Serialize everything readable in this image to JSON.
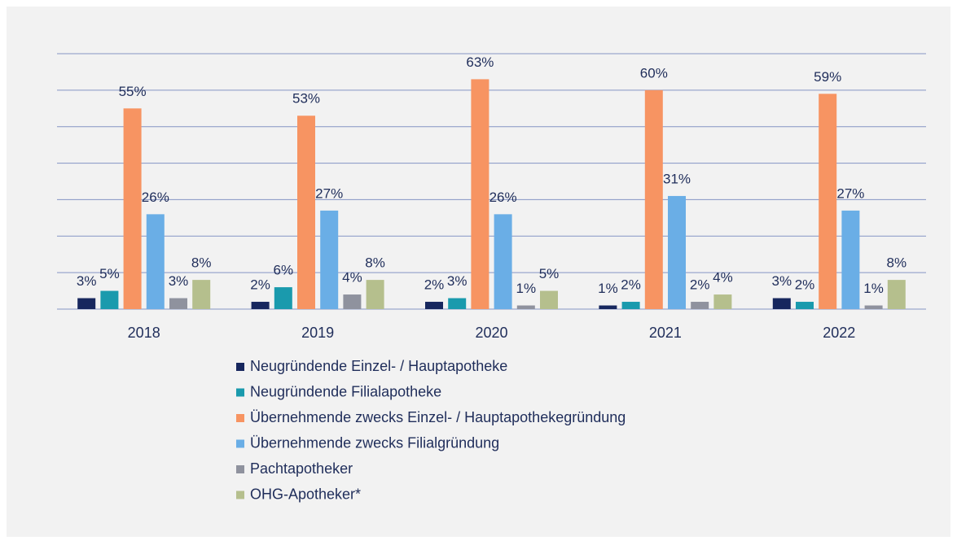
{
  "chart_data": {
    "type": "bar",
    "categories": [
      "2018",
      "2019",
      "2020",
      "2021",
      "2022"
    ],
    "series": [
      {
        "name": "Neugründende Einzel- / Hauptapotheke",
        "color": "#17275e",
        "values": [
          3,
          2,
          2,
          1,
          3
        ],
        "value_labels": [
          "3%",
          "2%",
          "2%",
          "1%",
          "3%"
        ]
      },
      {
        "name": "Neugründende Filialapotheke",
        "color": "#1a9aad",
        "values": [
          5,
          6,
          3,
          2,
          2
        ],
        "value_labels": [
          "5%",
          "6%",
          "3%",
          "2%",
          "2%"
        ]
      },
      {
        "name": "Übernehmende zwecks Einzel- / Hauptapothekegründung",
        "color": "#f79462",
        "values": [
          55,
          53,
          63,
          60,
          59
        ],
        "value_labels": [
          "55%",
          "53%",
          "63%",
          "60%",
          "59%"
        ]
      },
      {
        "name": "Übernehmende zwecks Filialgründung",
        "color": "#6aaee6",
        "values": [
          26,
          27,
          26,
          31,
          27
        ],
        "value_labels": [
          "26%",
          "27%",
          "26%",
          "31%",
          "27%"
        ]
      },
      {
        "name": "Pachtapotheker",
        "color": "#8f929e",
        "values": [
          3,
          4,
          1,
          2,
          1
        ],
        "value_labels": [
          "3%",
          "4%",
          "1%",
          "2%",
          "1%"
        ]
      },
      {
        "name": "OHG-Apotheker*",
        "color": "#b5bf8d",
        "values": [
          8,
          8,
          5,
          4,
          8
        ],
        "value_labels": [
          "8%",
          "8%",
          "5%",
          "4%",
          "8%"
        ]
      }
    ],
    "ylim": [
      0,
      70
    ],
    "yticks": [
      0,
      10,
      20,
      30,
      40,
      50,
      60,
      70
    ],
    "grid": true,
    "legend": "bottom"
  }
}
